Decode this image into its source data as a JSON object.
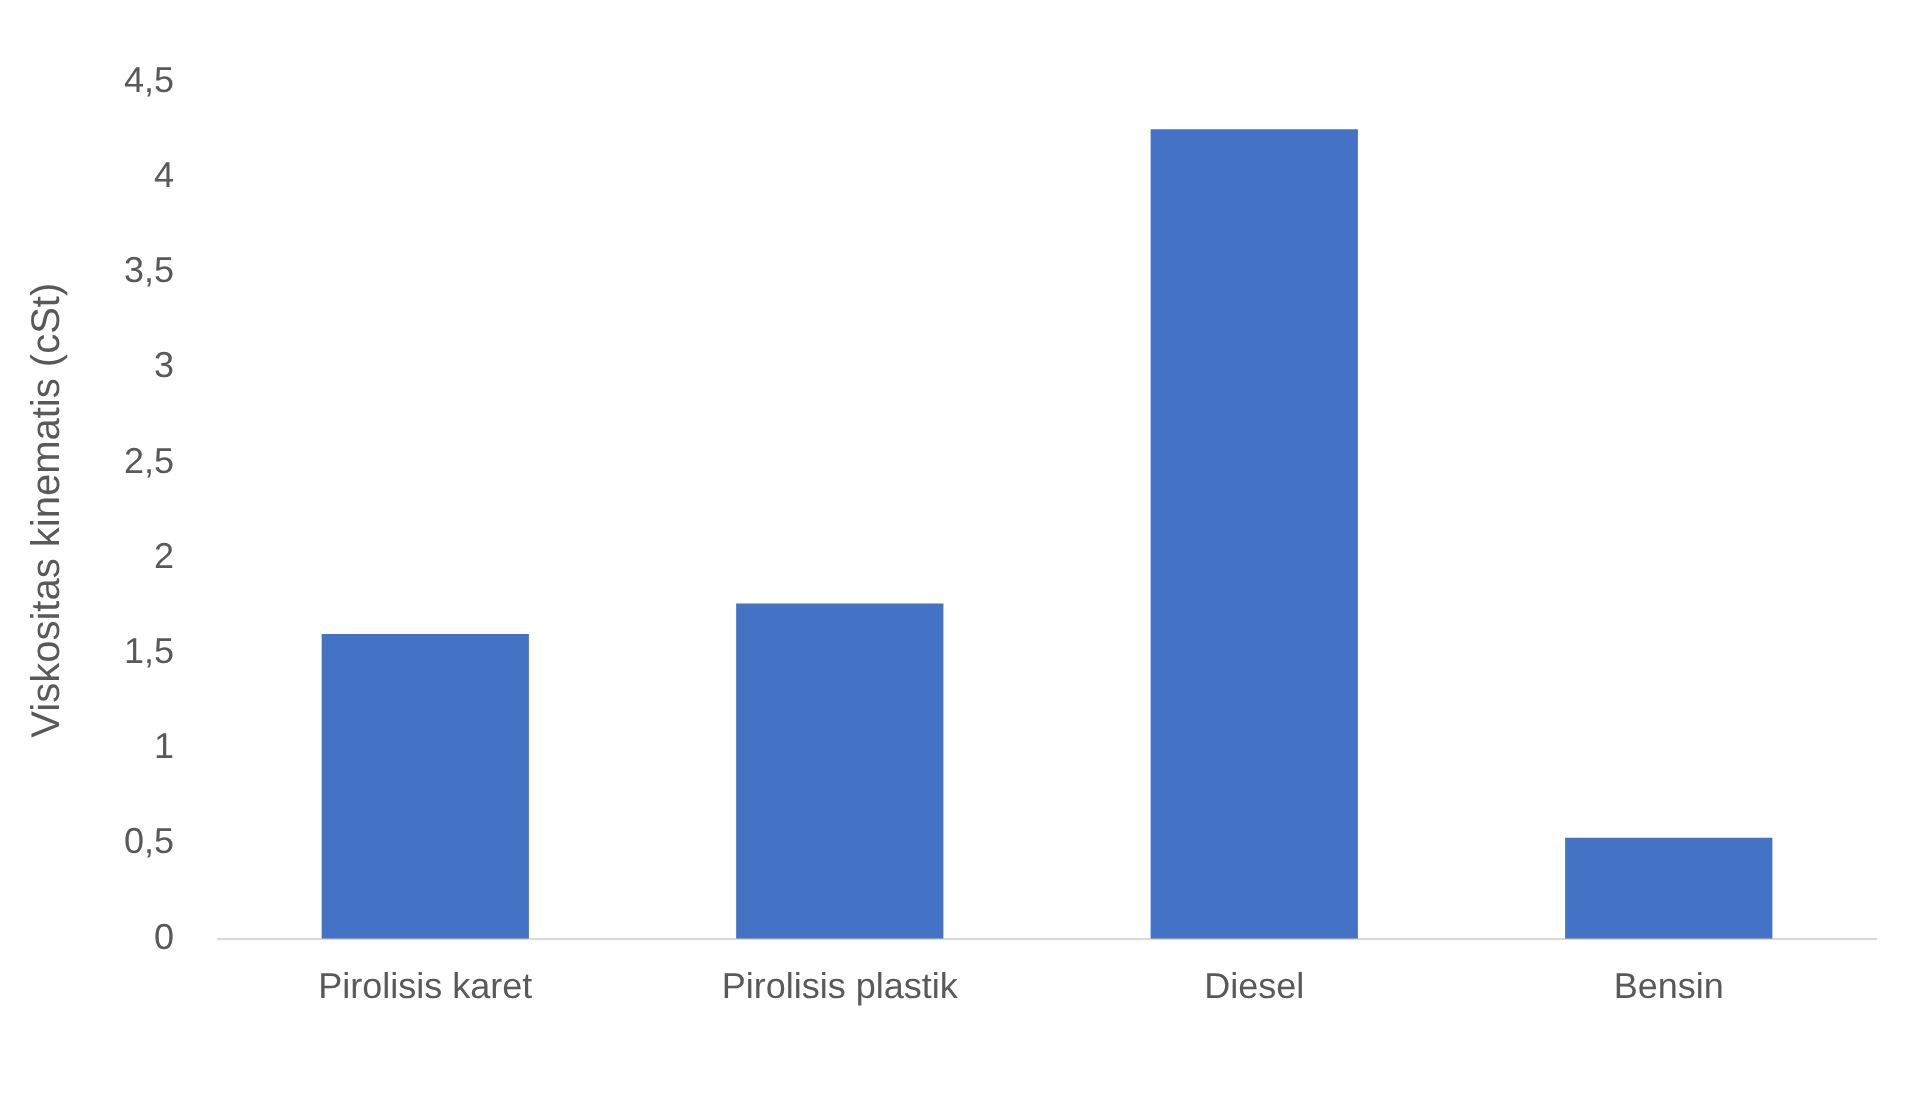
{
  "chart_data": {
    "type": "bar",
    "ylabel": "Viskositas kinematis (cSt)",
    "categories": [
      "Pirolisis karet",
      "Pirolisis plastik",
      "Diesel",
      "Bensin"
    ],
    "values": [
      1.6,
      1.76,
      4.25,
      0.53
    ],
    "color": "#4472c4",
    "ylim": [
      0,
      4.5
    ],
    "yticks": [
      0,
      {
        "value": 0.5,
        "label": "0,5"
      },
      1,
      {
        "value": 1.5,
        "label": "1,5"
      },
      2,
      {
        "value": 2.5,
        "label": "2,5"
      },
      3,
      {
        "value": 3.5,
        "label": "3,5"
      },
      4,
      {
        "value": 4.5,
        "label": "4,5"
      }
    ],
    "grid": false,
    "legend": false
  }
}
